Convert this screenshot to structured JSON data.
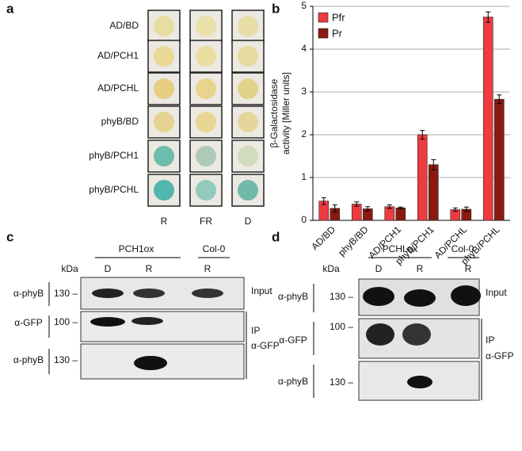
{
  "panel_a": {
    "label": "a",
    "rows": [
      "AD/BD",
      "AD/PCH1",
      "AD/PCHL",
      "phyB/BD",
      "phyB/PCH1",
      "phyB/PCHL"
    ],
    "columns": [
      "R",
      "FR",
      "D"
    ]
  },
  "chart_data": {
    "type": "bar",
    "panel_label": "b",
    "categories": [
      "AD/BD",
      "phyB/BD",
      "AD/PCH1",
      "phyB/PCH1",
      "AD/PCHL",
      "phyB/PCHL"
    ],
    "series": [
      {
        "name": "Pfr",
        "color": "#ee3b40",
        "values": [
          0.45,
          0.38,
          0.32,
          2.0,
          0.25,
          4.75
        ],
        "errors": [
          0.08,
          0.05,
          0.04,
          0.1,
          0.04,
          0.12
        ]
      },
      {
        "name": "Pr",
        "color": "#8a1a10",
        "values": [
          0.28,
          0.27,
          0.29,
          1.3,
          0.26,
          2.83
        ],
        "errors": [
          0.08,
          0.05,
          0.02,
          0.12,
          0.05,
          0.1
        ]
      }
    ],
    "ylabel": [
      "β-Galactosidase",
      "activity [Miller units]"
    ],
    "ylim": [
      0,
      5
    ],
    "yticks": [
      0,
      1,
      2,
      3,
      4,
      5
    ],
    "grid": true,
    "legend": "upper left"
  },
  "panel_c": {
    "label": "c",
    "groups": [
      "PCH1ox",
      "Col-0"
    ],
    "lanes": [
      "D",
      "R",
      "R"
    ],
    "unit": "kDa",
    "antibodies": [
      "α-phyB",
      "α-GFP",
      "α-phyB"
    ],
    "markers": [
      "130 –",
      "100 –",
      "130 –"
    ],
    "fractions": [
      "Input",
      "IP",
      "α-GFP"
    ]
  },
  "panel_d": {
    "label": "d",
    "groups": [
      "PCHLox",
      "Col-0"
    ],
    "lanes": [
      "D",
      "R",
      "R"
    ],
    "unit": "kDa",
    "antibodies": [
      "α-phyB",
      "α-GFP",
      "α-phyB"
    ],
    "markers": [
      "130 –",
      "100 –",
      "130 –"
    ],
    "fractions": [
      "Input",
      "IP",
      "α-GFP"
    ]
  }
}
